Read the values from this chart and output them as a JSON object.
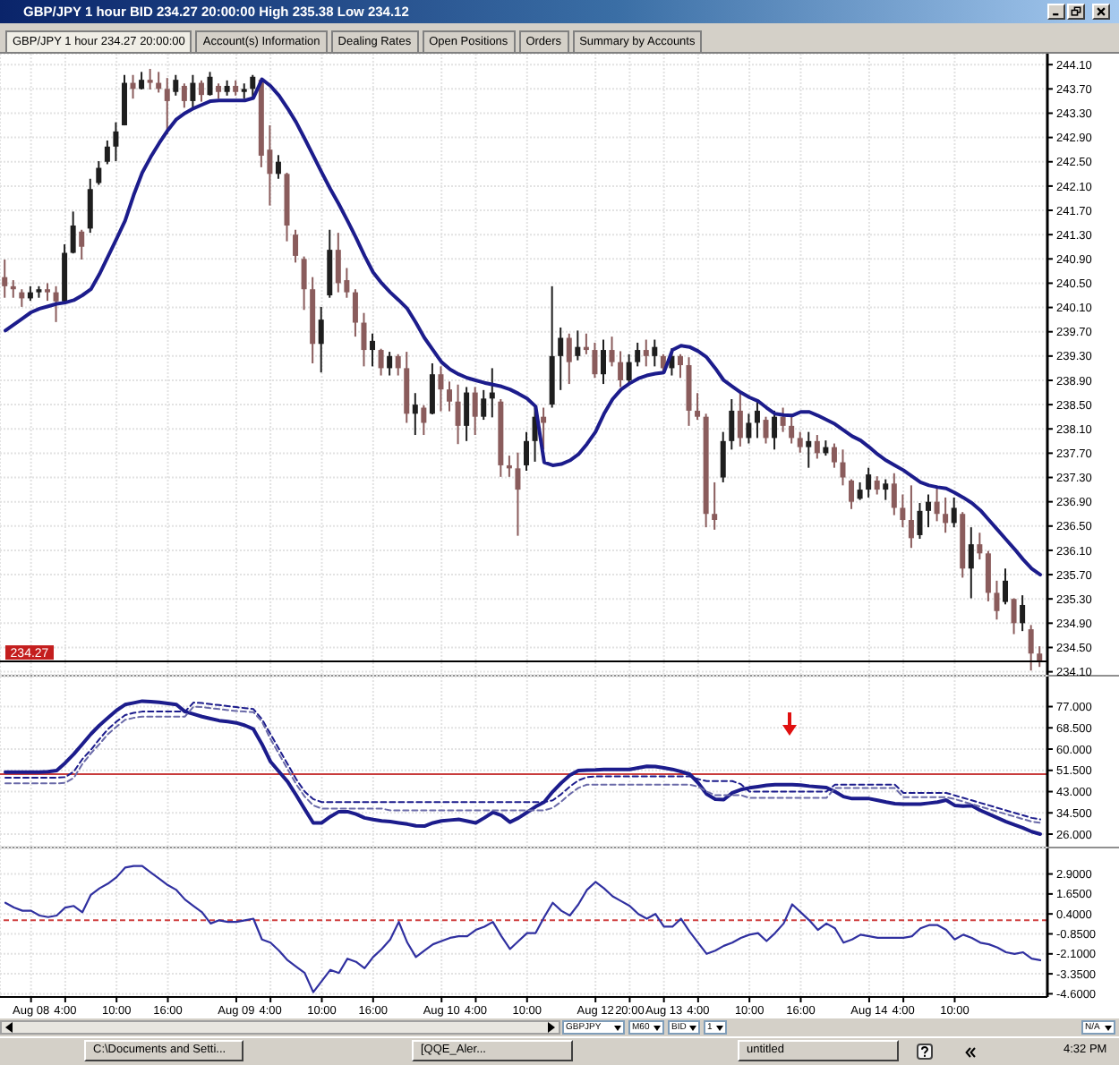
{
  "chart_data": [
    {
      "type": "candlestick",
      "title": "GBP/JPY 1 hour BID 234.27 20:00:00 High 235.38 Low 234.12",
      "annotations": [
        "GBP/JPY 1 hour 234.27 20:00:00",
        "Account(s) Information",
        "Dealing Rates",
        "Open Positions",
        "Orders",
        "Summary by Accounts"
      ],
      "categories": [
        null,
        null,
        null,
        "Aug 08",
        null,
        null,
        null,
        "4:00",
        null,
        null,
        null,
        null,
        null,
        "10:00",
        null,
        null,
        null,
        null,
        null,
        "16:00",
        null,
        null,
        null,
        null,
        null,
        null,
        null,
        "Aug 09",
        null,
        null,
        null,
        "4:00",
        null,
        null,
        null,
        null,
        null,
        "10:00",
        null,
        null,
        null,
        null,
        null,
        "16:00",
        null,
        null,
        null,
        null,
        null,
        null,
        null,
        "Aug 10",
        null,
        null,
        null,
        "4:00",
        null,
        null,
        null,
        null,
        null,
        "10:00",
        null,
        null,
        null,
        null,
        null,
        null,
        null,
        "Aug 12",
        null,
        null,
        null,
        "20:00",
        null,
        null,
        null,
        "Aug 13",
        null,
        null,
        null,
        "4:00",
        null,
        null,
        null,
        null,
        null,
        "10:00",
        null,
        null,
        null,
        null,
        null,
        "16:00",
        null,
        null,
        null,
        null,
        null,
        null,
        null,
        "Aug 14",
        null,
        null,
        null,
        "4:00",
        null,
        null,
        null,
        null,
        null,
        "10:00",
        null,
        null,
        null,
        null,
        null,
        null,
        null,
        null,
        null,
        null
      ],
      "ohlc": [
        [
          240.6,
          240.89,
          240.26,
          240.45
        ],
        [
          240.45,
          240.55,
          240.26,
          240.4
        ],
        [
          240.35,
          240.4,
          240.11,
          240.25
        ],
        [
          240.25,
          240.45,
          240.21,
          240.35
        ],
        [
          240.35,
          240.45,
          240.26,
          240.4
        ],
        [
          240.4,
          240.5,
          240.21,
          240.35
        ],
        [
          240.35,
          240.45,
          239.86,
          240.2
        ],
        [
          240.2,
          241.14,
          240.16,
          241.0
        ],
        [
          241.0,
          241.68,
          240.99,
          241.45
        ],
        [
          241.35,
          241.38,
          240.89,
          241.1
        ],
        [
          241.4,
          242.22,
          241.33,
          242.05
        ],
        [
          242.15,
          242.51,
          242.12,
          242.4
        ],
        [
          242.5,
          242.85,
          242.46,
          242.75
        ],
        [
          242.75,
          243.15,
          242.51,
          243.0
        ],
        [
          243.1,
          243.93,
          243.1,
          243.8
        ],
        [
          243.8,
          243.93,
          243.54,
          243.7
        ],
        [
          243.7,
          243.98,
          243.69,
          243.85
        ],
        [
          243.85,
          244.03,
          243.69,
          243.8
        ],
        [
          243.8,
          243.98,
          243.64,
          243.7
        ],
        [
          243.7,
          243.88,
          242.95,
          243.5
        ],
        [
          243.65,
          243.93,
          243.59,
          243.85
        ],
        [
          243.75,
          243.79,
          243.39,
          243.5
        ],
        [
          243.5,
          243.93,
          243.35,
          243.8
        ],
        [
          243.8,
          243.84,
          243.49,
          243.6
        ],
        [
          243.6,
          243.98,
          243.59,
          243.9
        ],
        [
          243.75,
          243.79,
          243.54,
          243.65
        ],
        [
          243.65,
          243.84,
          243.59,
          243.75
        ],
        [
          243.75,
          243.84,
          243.59,
          243.65
        ],
        [
          243.65,
          243.79,
          243.54,
          243.7
        ],
        [
          243.7,
          243.93,
          243.54,
          243.9
        ],
        [
          243.85,
          243.88,
          242.41,
          242.6
        ],
        [
          242.7,
          243.1,
          241.78,
          242.3
        ],
        [
          242.3,
          242.61,
          242.22,
          242.5
        ],
        [
          242.3,
          242.32,
          241.19,
          241.45
        ],
        [
          241.3,
          241.38,
          240.84,
          240.95
        ],
        [
          240.9,
          240.94,
          240.06,
          240.4
        ],
        [
          240.4,
          240.6,
          239.18,
          239.5
        ],
        [
          239.5,
          240.11,
          239.03,
          239.9
        ],
        [
          240.3,
          241.38,
          240.26,
          241.05
        ],
        [
          241.05,
          241.33,
          240.35,
          240.5
        ],
        [
          240.55,
          240.75,
          240.26,
          240.35
        ],
        [
          240.35,
          240.4,
          239.62,
          239.85
        ],
        [
          239.85,
          240.01,
          239.13,
          239.4
        ],
        [
          239.4,
          239.67,
          239.13,
          239.55
        ],
        [
          239.4,
          239.42,
          238.98,
          239.1
        ],
        [
          239.1,
          239.37,
          238.98,
          239.3
        ],
        [
          239.3,
          239.33,
          238.98,
          239.1
        ],
        [
          239.1,
          239.37,
          238.2,
          238.35
        ],
        [
          238.35,
          238.69,
          238.0,
          238.5
        ],
        [
          238.45,
          238.49,
          238.0,
          238.2
        ],
        [
          238.35,
          239.18,
          238.34,
          239.0
        ],
        [
          239.0,
          239.13,
          238.39,
          238.75
        ],
        [
          238.75,
          238.88,
          238.39,
          238.55
        ],
        [
          238.55,
          238.83,
          237.85,
          238.15
        ],
        [
          238.15,
          238.79,
          237.9,
          238.7
        ],
        [
          238.7,
          238.79,
          238.0,
          238.3
        ],
        [
          238.3,
          238.74,
          238.25,
          238.6
        ],
        [
          238.6,
          239.1,
          238.29,
          238.7
        ],
        [
          238.55,
          238.59,
          237.31,
          237.5
        ],
        [
          237.5,
          237.66,
          237.31,
          237.45
        ],
        [
          237.45,
          237.71,
          236.34,
          237.1
        ],
        [
          237.5,
          238.05,
          237.41,
          237.9
        ],
        [
          237.9,
          238.49,
          237.56,
          238.3
        ],
        [
          238.3,
          238.45,
          237.76,
          238.2
        ],
        [
          238.5,
          240.45,
          238.45,
          239.3
        ],
        [
          239.3,
          239.77,
          238.74,
          239.6
        ],
        [
          239.6,
          239.67,
          238.84,
          239.2
        ],
        [
          239.3,
          239.72,
          239.23,
          239.45
        ],
        [
          239.45,
          239.67,
          239.33,
          239.4
        ],
        [
          239.4,
          239.52,
          238.94,
          239.0
        ],
        [
          239.0,
          239.57,
          238.84,
          239.4
        ],
        [
          239.4,
          239.62,
          239.13,
          239.2
        ],
        [
          239.2,
          239.38,
          238.79,
          238.9
        ],
        [
          238.9,
          239.33,
          238.84,
          239.2
        ],
        [
          239.2,
          239.52,
          239.13,
          239.4
        ],
        [
          239.4,
          239.57,
          239.13,
          239.3
        ],
        [
          239.3,
          239.57,
          239.13,
          239.45
        ],
        [
          239.3,
          239.33,
          239.03,
          239.1
        ],
        [
          239.1,
          239.43,
          238.98,
          239.3
        ],
        [
          239.3,
          239.33,
          238.94,
          239.15
        ],
        [
          239.15,
          239.28,
          238.15,
          238.4
        ],
        [
          238.4,
          238.69,
          238.25,
          238.3
        ],
        [
          238.3,
          238.35,
          236.48,
          236.7
        ],
        [
          236.7,
          237.22,
          236.44,
          236.6
        ],
        [
          237.3,
          238.05,
          237.22,
          237.9
        ],
        [
          237.9,
          238.59,
          237.76,
          238.4
        ],
        [
          238.4,
          238.69,
          237.81,
          237.95
        ],
        [
          237.95,
          238.35,
          237.86,
          238.2
        ],
        [
          238.2,
          238.59,
          237.95,
          238.4
        ],
        [
          238.25,
          238.3,
          237.86,
          237.95
        ],
        [
          237.95,
          238.4,
          237.76,
          238.3
        ],
        [
          238.3,
          238.45,
          238.05,
          238.15
        ],
        [
          238.15,
          238.35,
          237.86,
          237.95
        ],
        [
          237.95,
          238.05,
          237.71,
          237.8
        ],
        [
          237.8,
          238.05,
          237.46,
          237.9
        ],
        [
          237.9,
          238.0,
          237.61,
          237.7
        ],
        [
          237.7,
          237.91,
          237.66,
          237.8
        ],
        [
          237.8,
          237.86,
          237.46,
          237.55
        ],
        [
          237.55,
          237.76,
          237.17,
          237.3
        ],
        [
          237.25,
          237.27,
          236.78,
          236.9
        ],
        [
          236.95,
          237.22,
          236.93,
          237.1
        ],
        [
          237.1,
          237.46,
          236.97,
          237.35
        ],
        [
          237.25,
          237.32,
          237.02,
          237.1
        ],
        [
          237.1,
          237.27,
          236.93,
          237.2
        ],
        [
          237.2,
          237.37,
          236.68,
          236.8
        ],
        [
          236.8,
          237.02,
          236.48,
          236.6
        ],
        [
          236.6,
          237.17,
          236.14,
          236.3
        ],
        [
          236.35,
          236.88,
          236.29,
          236.75
        ],
        [
          236.75,
          237.02,
          236.48,
          236.9
        ],
        [
          236.9,
          237.12,
          236.58,
          236.7
        ],
        [
          236.7,
          236.97,
          236.39,
          236.55
        ],
        [
          236.55,
          236.97,
          236.48,
          236.8
        ],
        [
          236.7,
          236.73,
          235.65,
          235.8
        ],
        [
          235.8,
          236.48,
          235.31,
          236.2
        ],
        [
          236.2,
          236.39,
          235.95,
          236.05
        ],
        [
          236.05,
          236.09,
          235.26,
          235.4
        ],
        [
          235.4,
          235.6,
          234.96,
          235.1
        ],
        [
          235.25,
          235.8,
          235.21,
          235.6
        ],
        [
          235.3,
          235.31,
          234.72,
          234.9
        ],
        [
          234.9,
          235.36,
          234.77,
          235.2
        ],
        [
          234.8,
          234.87,
          234.12,
          234.4
        ],
        [
          234.4,
          234.52,
          234.18,
          234.27
        ]
      ],
      "colors": [
        "#8a5c5c",
        "#8a5c5c",
        "#8a5c5c",
        "#1e1e1e",
        "#1e1e1e",
        "#8a5c5c",
        "#8a5c5c",
        "#1e1e1e",
        "#1e1e1e",
        "#8a5c5c",
        "#1e1e1e",
        "#1e1e1e",
        "#1e1e1e",
        "#1e1e1e",
        "#1e1e1e",
        "#8a5c5c",
        "#1e1e1e",
        "#8a5c5c",
        "#8a5c5c",
        "#8a5c5c",
        "#1e1e1e",
        "#8a5c5c",
        "#1e1e1e",
        "#8a5c5c",
        "#1e1e1e",
        "#8a5c5c",
        "#1e1e1e",
        "#8a5c5c",
        "#1e1e1e",
        "#1e1e1e",
        "#8a5c5c",
        "#8a5c5c",
        "#1e1e1e",
        "#8a5c5c",
        "#8a5c5c",
        "#8a5c5c",
        "#8a5c5c",
        "#1e1e1e",
        "#1e1e1e",
        "#8a5c5c",
        "#8a5c5c",
        "#8a5c5c",
        "#8a5c5c",
        "#1e1e1e",
        "#8a5c5c",
        "#1e1e1e",
        "#8a5c5c",
        "#8a5c5c",
        "#1e1e1e",
        "#8a5c5c",
        "#1e1e1e",
        "#8a5c5c",
        "#8a5c5c",
        "#8a5c5c",
        "#1e1e1e",
        "#8a5c5c",
        "#1e1e1e",
        "#1e1e1e",
        "#8a5c5c",
        "#8a5c5c",
        "#8a5c5c",
        "#1e1e1e",
        "#1e1e1e",
        "#8a5c5c",
        "#1e1e1e",
        "#1e1e1e",
        "#8a5c5c",
        "#1e1e1e",
        "#8a5c5c",
        "#8a5c5c",
        "#1e1e1e",
        "#8a5c5c",
        "#8a5c5c",
        "#1e1e1e",
        "#1e1e1e",
        "#8a5c5c",
        "#1e1e1e",
        "#8a5c5c",
        "#1e1e1e",
        "#8a5c5c",
        "#8a5c5c",
        "#8a5c5c",
        "#8a5c5c",
        "#8a5c5c",
        "#1e1e1e",
        "#1e1e1e",
        "#8a5c5c",
        "#1e1e1e",
        "#1e1e1e",
        "#8a5c5c",
        "#1e1e1e",
        "#8a5c5c",
        "#8a5c5c",
        "#8a5c5c",
        "#1e1e1e",
        "#8a5c5c",
        "#1e1e1e",
        "#8a5c5c",
        "#8a5c5c",
        "#8a5c5c",
        "#1e1e1e",
        "#1e1e1e",
        "#8a5c5c",
        "#1e1e1e",
        "#8a5c5c",
        "#8a5c5c",
        "#8a5c5c",
        "#1e1e1e",
        "#1e1e1e",
        "#8a5c5c",
        "#8a5c5c",
        "#1e1e1e",
        "#8a5c5c",
        "#1e1e1e",
        "#8a5c5c",
        "#8a5c5c",
        "#8a5c5c",
        "#1e1e1e",
        "#8a5c5c",
        "#1e1e1e",
        "#8a5c5c",
        "#8a5c5c"
      ],
      "series": [
        {
          "type": "line",
          "color": "#1c1c8c",
          "values": [
            239.72,
            239.82,
            239.92,
            240.02,
            240.08,
            240.12,
            240.16,
            240.18,
            240.22,
            240.3,
            240.4,
            240.65,
            240.94,
            241.23,
            241.53,
            241.95,
            242.32,
            242.58,
            242.81,
            243.02,
            243.2,
            243.3,
            243.38,
            243.44,
            243.5,
            243.51,
            243.51,
            243.51,
            243.51,
            243.55,
            243.86,
            243.75,
            243.59,
            243.38,
            243.15,
            242.88,
            242.6,
            242.32,
            242.05,
            241.8,
            241.53,
            241.25,
            240.95,
            240.68,
            240.5,
            240.35,
            240.22,
            240.08,
            239.85,
            239.6,
            239.4,
            239.2,
            239.08,
            239.0,
            238.94,
            238.9,
            238.86,
            238.83,
            238.8,
            238.75,
            238.68,
            238.6,
            238.47,
            237.55,
            237.5,
            237.52,
            237.58,
            237.68,
            237.85,
            238.05,
            238.35,
            238.59,
            238.75,
            238.85,
            238.93,
            238.98,
            239.01,
            239.03,
            239.4,
            239.47,
            239.45,
            239.38,
            239.28,
            239.1,
            238.9,
            238.8,
            238.7,
            238.62,
            238.56,
            238.45,
            238.35,
            238.33,
            238.32,
            238.38,
            238.38,
            238.32,
            238.25,
            238.18,
            238.08,
            237.98,
            237.91,
            237.8,
            237.68,
            237.58,
            237.5,
            237.42,
            237.32,
            237.22,
            237.17,
            237.14,
            237.12,
            237.05,
            236.97,
            236.88,
            236.76,
            236.6,
            236.44,
            236.28,
            236.12,
            235.95,
            235.8,
            235.7
          ]
        }
      ],
      "ylim": [
        234.05,
        244.28
      ],
      "yticks": [
        {
          "value": 234.1,
          "label": "234.10"
        },
        {
          "value": 234.5,
          "label": "234.50"
        },
        {
          "value": 234.9,
          "label": "234.90"
        },
        {
          "value": 235.3,
          "label": "235.30"
        },
        {
          "value": 235.7,
          "label": "235.70"
        },
        {
          "value": 236.1,
          "label": "236.10"
        },
        {
          "value": 236.5,
          "label": "236.50"
        },
        {
          "value": 236.9,
          "label": "236.90"
        },
        {
          "value": 237.3,
          "label": "237.30"
        },
        {
          "value": 237.7,
          "label": "237.70"
        },
        {
          "value": 238.1,
          "label": "238.10"
        },
        {
          "value": 238.5,
          "label": "238.50"
        },
        {
          "value": 238.9,
          "label": "238.90"
        },
        {
          "value": 239.3,
          "label": "239.30"
        },
        {
          "value": 239.7,
          "label": "239.70"
        },
        {
          "value": 240.1,
          "label": "240.10"
        },
        {
          "value": 240.5,
          "label": "240.50"
        },
        {
          "value": 240.9,
          "label": "240.90"
        },
        {
          "value": 241.3,
          "label": "241.30"
        },
        {
          "value": 241.7,
          "label": "241.70"
        },
        {
          "value": 242.1,
          "label": "242.10"
        },
        {
          "value": 242.5,
          "label": "242.50"
        },
        {
          "value": 242.9,
          "label": "242.90"
        },
        {
          "value": 243.3,
          "label": "243.30"
        },
        {
          "value": 243.7,
          "label": "243.70"
        },
        {
          "value": 244.1,
          "label": "244.10"
        }
      ],
      "grid": true,
      "tick_labels": "y",
      "ref_lines": [
        {
          "axis": "y",
          "value": 234.27,
          "label": "234.27",
          "color": "#000000"
        }
      ]
    },
    {
      "type": "line",
      "categories": [
        null,
        null,
        null,
        "Aug 08",
        null,
        null,
        null,
        "4:00",
        null,
        null,
        null,
        null,
        null,
        "10:00",
        null,
        null,
        null,
        null,
        null,
        "16:00",
        null,
        null,
        null,
        null,
        null,
        null,
        null,
        "Aug 09",
        null,
        null,
        null,
        "4:00",
        null,
        null,
        null,
        null,
        null,
        "10:00",
        null,
        null,
        null,
        null,
        null,
        "16:00",
        null,
        null,
        null,
        null,
        null,
        null,
        null,
        "Aug 10",
        null,
        null,
        null,
        "4:00",
        null,
        null,
        null,
        null,
        null,
        "10:00",
        null,
        null,
        null,
        null,
        null,
        null,
        null,
        "Aug 12",
        null,
        null,
        null,
        "20:00",
        null,
        null,
        null,
        "Aug 13",
        null,
        null,
        null,
        "4:00",
        null,
        null,
        null,
        null,
        null,
        "10:00",
        null,
        null,
        null,
        null,
        null,
        "16:00",
        null,
        null,
        null,
        null,
        null,
        null,
        null,
        "Aug 14",
        null,
        null,
        null,
        "4:00",
        null,
        null,
        null,
        null,
        null,
        "10:00",
        null,
        null,
        null,
        null,
        null,
        null,
        null,
        null,
        null,
        null
      ],
      "series": [
        {
          "color": "#1c1c8c",
          "values": [
            50.8,
            50.8,
            50.8,
            50.8,
            50.8,
            51,
            51.4,
            54.5,
            58,
            62,
            66,
            69.5,
            72.5,
            75.5,
            77.8,
            78.5,
            79.2,
            79,
            78.7,
            78.3,
            77.8,
            75,
            74,
            73,
            72.2,
            71.4,
            71,
            70.5,
            69.5,
            68,
            62,
            55,
            51,
            47,
            41.6,
            36,
            30.5,
            30.5,
            33,
            35,
            35,
            34,
            32.5,
            31.8,
            31.3,
            31,
            30.5,
            30,
            29.3,
            29.2,
            30.5,
            31.3,
            31.6,
            31.9,
            31.2,
            30.5,
            32.5,
            34.7,
            33.5,
            30.8,
            32.5,
            34.7,
            37,
            38.8,
            43,
            46.5,
            49.5,
            51.4,
            51.6,
            51.7,
            51.9,
            51.9,
            51.9,
            51.9,
            52.5,
            53.1,
            53,
            52.5,
            51.9,
            51,
            50,
            46.5,
            42,
            40,
            39.8,
            42.5,
            43.8,
            44.5,
            45,
            45.5,
            45.8,
            45.8,
            45.8,
            45.6,
            45.2,
            44.9,
            44.6,
            43,
            41,
            40.2,
            40.2,
            40.2,
            39.5,
            38.8,
            38.2,
            38,
            38,
            38,
            38.4,
            38.8,
            39.6,
            37.5,
            37.2,
            37.4,
            35.5,
            34,
            32.5,
            31,
            29.7,
            28.5,
            27,
            26
          ]
        },
        {
          "color": "#1c1c8c",
          "line_style": "dashed",
          "values": [
            48.6,
            48.6,
            48.6,
            48.6,
            48.6,
            48.6,
            48.6,
            48.8,
            51,
            56,
            59.7,
            64,
            68,
            71,
            73.6,
            74.5,
            75,
            75,
            75,
            75,
            75,
            75,
            78.6,
            78.4,
            78,
            77.6,
            77.2,
            76.8,
            76.4,
            76,
            72,
            66,
            60,
            54,
            48,
            43,
            40,
            38.8,
            38.8,
            38.8,
            38.8,
            38.8,
            38.8,
            38.8,
            38.8,
            38.8,
            38.8,
            38.8,
            38.8,
            38.8,
            38.8,
            38.8,
            38.8,
            38.8,
            38.8,
            38.8,
            38.8,
            38.8,
            38.8,
            38.8,
            38.8,
            38.8,
            38.8,
            38.8,
            39.5,
            42,
            45,
            47.5,
            48.8,
            49.1,
            49.1,
            49.1,
            49.1,
            49.1,
            49.1,
            49.1,
            49.1,
            49.1,
            49.1,
            49.1,
            49.1,
            48,
            47.2,
            47.2,
            47.2,
            47.2,
            46,
            43,
            43,
            43,
            43,
            43,
            43,
            43,
            43,
            43,
            43,
            45.8,
            45.8,
            45.8,
            45.8,
            45.8,
            45.8,
            45.8,
            45.8,
            42.5,
            42.5,
            42.5,
            42.5,
            42.5,
            42.5,
            41.5,
            40.5,
            39.5,
            38.5,
            37.5,
            36.5,
            35.5,
            34.5,
            33.5,
            32.5,
            31.9
          ]
        },
        {
          "color": "#6a6aa8",
          "line_style": "dashed",
          "values": [
            46.3,
            46.3,
            46.3,
            46.3,
            46.3,
            46.3,
            46.3,
            46.5,
            48.5,
            54,
            58.3,
            62,
            66,
            69,
            71.7,
            72.5,
            73,
            73,
            73,
            73,
            73,
            73,
            77,
            76.8,
            76.4,
            76,
            75.6,
            75.2,
            75,
            74.8,
            71,
            64,
            58,
            52,
            46,
            41,
            37.5,
            36.2,
            36.2,
            36.2,
            36.2,
            36.2,
            36.2,
            36.2,
            36.2,
            35.5,
            35.5,
            35.5,
            35.5,
            35.5,
            35.5,
            35.5,
            35.5,
            35.5,
            35.5,
            35.5,
            35.5,
            35.5,
            35.5,
            35.5,
            35.5,
            35.5,
            35.5,
            35.5,
            36.5,
            39,
            42,
            44.5,
            45.8,
            45.8,
            45.8,
            45.8,
            45.8,
            45.8,
            45.8,
            45.8,
            45.8,
            45.8,
            45.8,
            45.8,
            45.8,
            45,
            43,
            41.6,
            41.6,
            41.6,
            41.6,
            40.5,
            40.5,
            40.5,
            40.5,
            40.5,
            40.5,
            40.5,
            40.5,
            40.5,
            40.5,
            44.4,
            44.4,
            44.4,
            44.4,
            44.4,
            44.4,
            44.4,
            44.4,
            40.8,
            40.8,
            40.8,
            40.8,
            40.8,
            40.8,
            40,
            39,
            38,
            37,
            36,
            35,
            34,
            33,
            32,
            31,
            30.5
          ]
        }
      ],
      "ylim": [
        21,
        89
      ],
      "yticks": [
        {
          "value": 26,
          "label": "26.000"
        },
        {
          "value": 34.5,
          "label": "34.500"
        },
        {
          "value": 43,
          "label": "43.000"
        },
        {
          "value": 51.5,
          "label": "51.500"
        },
        {
          "value": 60,
          "label": "60.000"
        },
        {
          "value": 68.5,
          "label": "68.500"
        },
        {
          "value": 77,
          "label": "77.000"
        }
      ],
      "grid": true,
      "tick_labels": "y",
      "ref_lines": [
        {
          "axis": "y",
          "value": 50,
          "color": "#c83c3c"
        }
      ]
    },
    {
      "type": "line",
      "categories": [
        null,
        null,
        null,
        "Aug 08",
        null,
        null,
        null,
        "4:00",
        null,
        null,
        null,
        null,
        null,
        "10:00",
        null,
        null,
        null,
        null,
        null,
        "16:00",
        null,
        null,
        null,
        null,
        null,
        null,
        null,
        "Aug 09",
        null,
        null,
        null,
        "4:00",
        null,
        null,
        null,
        null,
        null,
        "10:00",
        null,
        null,
        null,
        null,
        null,
        "16:00",
        null,
        null,
        null,
        null,
        null,
        null,
        null,
        "Aug 10",
        null,
        null,
        null,
        "4:00",
        null,
        null,
        null,
        null,
        null,
        "10:00",
        null,
        null,
        null,
        null,
        null,
        null,
        null,
        "Aug 12",
        null,
        null,
        null,
        "20:00",
        null,
        null,
        null,
        "Aug 13",
        null,
        null,
        null,
        "4:00",
        null,
        null,
        null,
        null,
        null,
        "10:00",
        null,
        null,
        null,
        null,
        null,
        "16:00",
        null,
        null,
        null,
        null,
        null,
        null,
        null,
        "Aug 14",
        null,
        null,
        null,
        "4:00",
        null,
        null,
        null,
        null,
        null,
        "10:00",
        null,
        null,
        null,
        null,
        null,
        null,
        null,
        null,
        null,
        null
      ],
      "values": [
        1.1,
        0.8,
        0.6,
        0.6,
        0.3,
        0.2,
        0.3,
        0.8,
        0.9,
        0.5,
        1.6,
        2.0,
        2.3,
        2.7,
        3.3,
        3.4,
        3.4,
        3.0,
        2.6,
        2.2,
        1.9,
        1.3,
        0.9,
        0.5,
        -0.2,
        0.0,
        -0.1,
        -0.1,
        0.0,
        0.1,
        -1.2,
        -1.4,
        -1.9,
        -2.5,
        -2.9,
        -3.3,
        -4.5,
        -3.8,
        -3.1,
        -3.3,
        -2.4,
        -2.6,
        -3.0,
        -2.3,
        -1.8,
        -1.2,
        -0.1,
        -1.4,
        -2.3,
        -1.9,
        -1.5,
        -1.3,
        -1.1,
        -1.0,
        -1.0,
        -0.6,
        -0.4,
        -0.1,
        -1.0,
        -1.8,
        -1.3,
        -0.8,
        -0.8,
        0.2,
        1.1,
        0.6,
        0.3,
        1.0,
        1.9,
        2.4,
        2.0,
        1.5,
        1.2,
        0.9,
        0.4,
        0.1,
        0.4,
        -0.4,
        -0.4,
        0.1,
        -0.7,
        -1.4,
        -2.1,
        -1.9,
        -1.6,
        -1.4,
        -1.1,
        -0.9,
        -0.8,
        -1.3,
        -0.8,
        -0.2,
        1.0,
        0.5,
        0.0,
        -0.6,
        -0.2,
        -0.5,
        -1.4,
        -1.2,
        -0.9,
        -1.0,
        -1.1,
        -1.1,
        -1.1,
        -1.1,
        -1.0,
        -0.5,
        -0.3,
        -0.3,
        -0.6,
        -1.2,
        -0.9,
        -1.1,
        -1.4,
        -1.5,
        -1.7,
        -2.0,
        -2.1,
        -2.0,
        -2.4,
        -2.5
      ],
      "color": "#3030a0",
      "ylim": [
        -4.8,
        4.5
      ],
      "yticks": [
        {
          "value": -4.6,
          "label": "-4.6000"
        },
        {
          "value": -3.35,
          "label": "-3.3500"
        },
        {
          "value": -2.1,
          "label": "-2.1000"
        },
        {
          "value": -0.85,
          "label": "-0.8500"
        },
        {
          "value": 0.4,
          "label": "0.4000"
        },
        {
          "value": 1.65,
          "label": "1.6500"
        },
        {
          "value": 2.9,
          "label": "2.9000"
        }
      ],
      "grid": true,
      "ref_lines": [
        {
          "axis": "y",
          "value": 0,
          "color": "#d04040",
          "line_style": "dashed"
        }
      ],
      "annotations": [
        "GBPJPY",
        "M60",
        "BID",
        "1",
        "N/A",
        "C:\\Documents and Setti...",
        "[QQE_Aler...",
        "untitled",
        "4:32 PM"
      ]
    }
  ]
}
